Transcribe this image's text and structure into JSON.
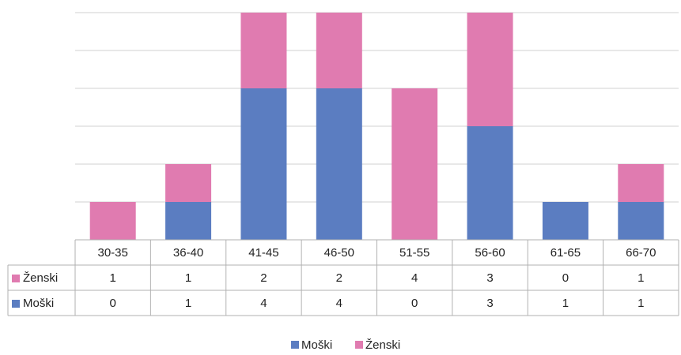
{
  "chart_data": {
    "type": "bar",
    "stacked": true,
    "categories": [
      "30-35",
      "36-40",
      "41-45",
      "46-50",
      "51-55",
      "56-60",
      "61-65",
      "66-70"
    ],
    "series": [
      {
        "name": "Moški",
        "color": "#5b7dc1",
        "values": [
          0,
          1,
          4,
          4,
          0,
          3,
          1,
          1
        ]
      },
      {
        "name": "Ženski",
        "color": "#e07bb0",
        "values": [
          1,
          1,
          2,
          2,
          4,
          3,
          0,
          1
        ]
      }
    ],
    "ylim": [
      0,
      6
    ],
    "yticks": [
      0,
      1,
      2,
      3,
      4,
      5,
      6
    ],
    "grid": true,
    "legend": "bottom",
    "data_table": true
  }
}
